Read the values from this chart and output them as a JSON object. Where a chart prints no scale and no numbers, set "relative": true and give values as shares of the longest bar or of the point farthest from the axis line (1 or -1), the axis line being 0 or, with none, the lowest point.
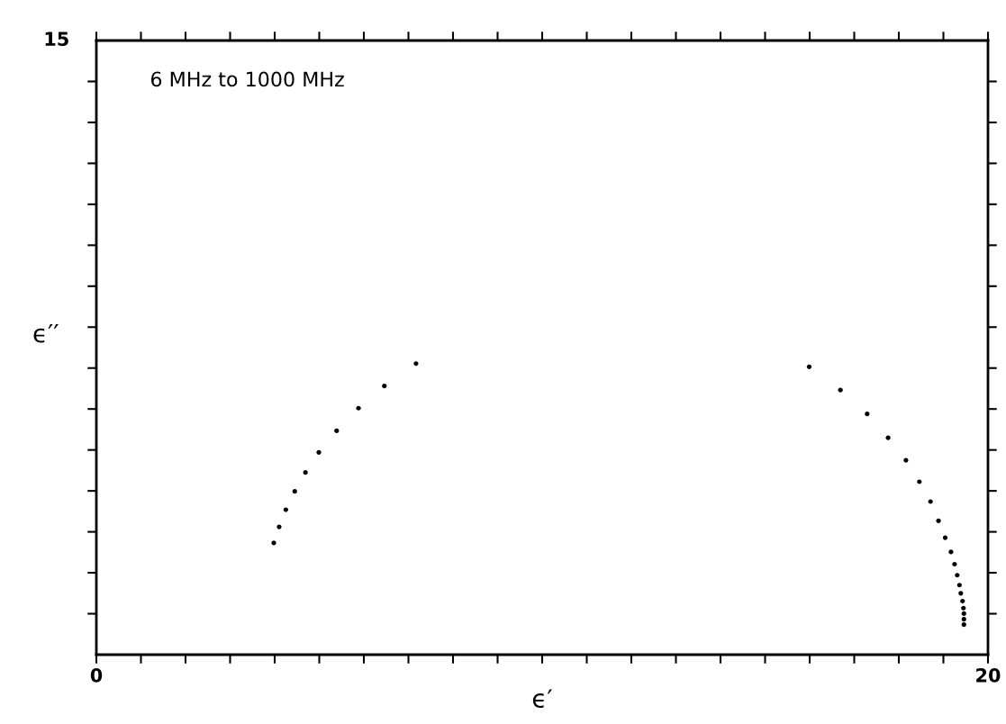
{
  "chart_data": {
    "type": "scatter",
    "xlabel": "ϵ′",
    "ylabel": "ϵ′′",
    "relative": true,
    "annotations": [
      "15",
      "6 MHz to 1000 MHz"
    ],
    "marker": "circle",
    "grid": false,
    "series": [
      {
        "color": "#000000",
        "x": [
          3.98,
          4.1,
          4.25,
          4.45,
          4.69,
          4.99,
          5.39,
          5.88,
          6.46,
          7.17,
          15.99,
          16.69,
          17.29,
          17.76,
          18.16,
          18.46,
          18.71,
          18.89,
          19.04,
          19.17,
          19.25,
          19.31,
          19.36,
          19.39,
          19.43,
          19.45,
          19.46,
          19.46,
          19.46
        ],
        "values": [
          0.384,
          0.439,
          0.498,
          0.561,
          0.626,
          0.695,
          0.769,
          0.847,
          0.923,
          1,
          0.989,
          0.909,
          0.827,
          0.745,
          0.668,
          0.594,
          0.526,
          0.46,
          0.402,
          0.353,
          0.311,
          0.273,
          0.239,
          0.211,
          0.184,
          0.16,
          0.141,
          0.122,
          0.103
        ]
      }
    ],
    "xlim": [
      0,
      20
    ],
    "xticks": [
      0,
      {
        "value": 1,
        "label": null
      },
      {
        "value": 2,
        "label": null
      },
      {
        "value": 3,
        "label": null
      },
      {
        "value": 4,
        "label": null
      },
      {
        "value": 5,
        "label": null
      },
      {
        "value": 6,
        "label": null
      },
      {
        "value": 7,
        "label": null
      },
      {
        "value": 8,
        "label": null
      },
      {
        "value": 9,
        "label": null
      },
      {
        "value": 10,
        "label": null
      },
      {
        "value": 11,
        "label": null
      },
      {
        "value": 12,
        "label": null
      },
      {
        "value": 13,
        "label": null
      },
      {
        "value": 14,
        "label": null
      },
      {
        "value": 15,
        "label": null
      },
      {
        "value": 16,
        "label": null
      },
      {
        "value": 17,
        "label": null
      },
      {
        "value": 18,
        "label": null
      },
      {
        "value": 19,
        "label": null
      },
      20
    ]
  }
}
